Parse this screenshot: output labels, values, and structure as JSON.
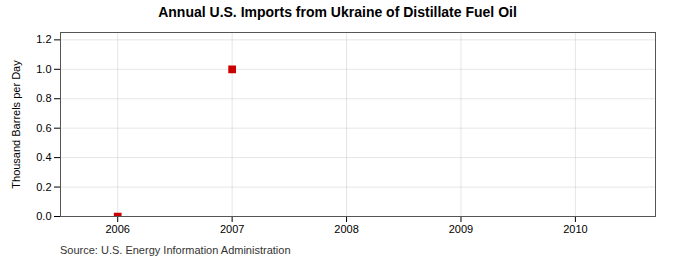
{
  "chart_data": {
    "type": "scatter",
    "title": "Annual U.S. Imports from Ukraine of Distillate Fuel Oil",
    "ylabel": "Thousand Barrels per Day",
    "source": "Source: U.S. Energy Information Administration",
    "x": [
      2006,
      2007
    ],
    "values": [
      0.0,
      1.0
    ],
    "color": "#cc0000",
    "marker": "square",
    "xlim": [
      2005.5,
      2010.7
    ],
    "ylim": [
      0.0,
      1.25
    ],
    "xticks": [
      2006,
      2007,
      2008,
      2009,
      2010
    ],
    "yticks": [
      {
        "value": 0.0,
        "label": "0.0"
      },
      0.2,
      0.4,
      0.6,
      0.8,
      {
        "value": 1.0,
        "label": "1.0"
      },
      1.2
    ],
    "grid": true
  }
}
